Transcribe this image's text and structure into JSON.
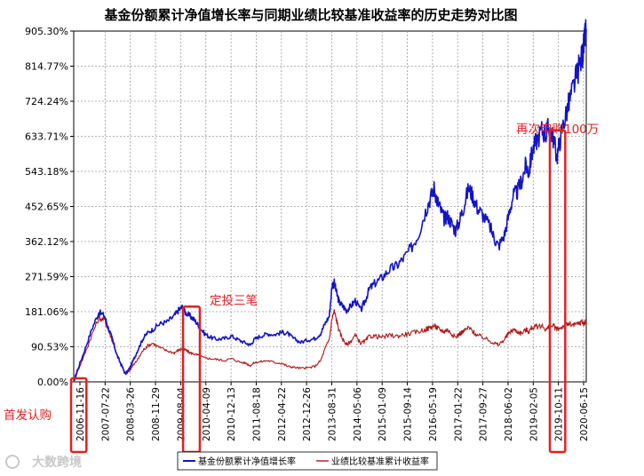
{
  "colors": {
    "fund": "#1414c8",
    "benchmark": "#b01818",
    "annotation": "#e02020",
    "grid": "#9a9a9a",
    "axis": "#000000",
    "watermark": "#c8c8c8"
  },
  "chart_data": {
    "type": "line",
    "title": "基金份额累计净值增长率与同期业绩比较基准收益率的历史走势对比图",
    "xlabel": "",
    "ylabel": "",
    "ylim": [
      0,
      905.3
    ],
    "y_ticks": [
      "0.00%",
      "90.53%",
      "181.06%",
      "271.59%",
      "362.12%",
      "452.65%",
      "543.18%",
      "633.71%",
      "724.24%",
      "814.77%",
      "905.30%"
    ],
    "x_ticks": [
      "2006-11-16",
      "2007-07-22",
      "2008-03-26",
      "2008-11-29",
      "2009-08-04",
      "2010-04-09",
      "2010-12-13",
      "2011-08-18",
      "2012-04-22",
      "2012-12-26",
      "2013-08-31",
      "2014-05-06",
      "2015-01-09",
      "2015-09-14",
      "2016-05-19",
      "2017-01-22",
      "2017-09-27",
      "2018-06-02",
      "2019-02-05",
      "2019-10-11",
      "2020-06-15"
    ],
    "grid": true,
    "legend_position": "bottom-center",
    "series": [
      {
        "name": "基金份额累计净值增长率",
        "color": "#1414c8",
        "points": [
          [
            0,
            0
          ],
          [
            0.5,
            30
          ],
          [
            1.5,
            80
          ],
          [
            2.5,
            135
          ],
          [
            3.5,
            180
          ],
          [
            4.3,
            170
          ],
          [
            4.8,
            140
          ],
          [
            5.4,
            110
          ],
          [
            6,
            70
          ],
          [
            6.6,
            45
          ],
          [
            7.2,
            20
          ],
          [
            7.8,
            35
          ],
          [
            8.4,
            60
          ],
          [
            9,
            85
          ],
          [
            9.6,
            110
          ],
          [
            10.2,
            125
          ],
          [
            11,
            135
          ],
          [
            12,
            150
          ],
          [
            13,
            155
          ],
          [
            14,
            170
          ],
          [
            14.6,
            185
          ],
          [
            15.1,
            192
          ],
          [
            15.6,
            178
          ],
          [
            16.2,
            170
          ],
          [
            16.8,
            160
          ],
          [
            17.4,
            145
          ],
          [
            18.2,
            125
          ],
          [
            19,
            115
          ],
          [
            20,
            110
          ],
          [
            21,
            112
          ],
          [
            22,
            118
          ],
          [
            23,
            108
          ],
          [
            24,
            100
          ],
          [
            24.6,
            95
          ],
          [
            25.2,
            110
          ],
          [
            26,
            118
          ],
          [
            27,
            124
          ],
          [
            28,
            122
          ],
          [
            29,
            128
          ],
          [
            29.8,
            125
          ],
          [
            30.6,
            112
          ],
          [
            31.6,
            102
          ],
          [
            32.6,
            108
          ],
          [
            33.6,
            112
          ],
          [
            34.4,
            125
          ],
          [
            35,
            150
          ],
          [
            35.6,
            170
          ],
          [
            36,
            250
          ],
          [
            36.3,
            255
          ],
          [
            36.6,
            230
          ],
          [
            37,
            205
          ],
          [
            37.5,
            195
          ],
          [
            38,
            185
          ],
          [
            38.6,
            195
          ],
          [
            39.2,
            210
          ],
          [
            40,
            185
          ],
          [
            40.6,
            210
          ],
          [
            41.2,
            240
          ],
          [
            42,
            255
          ],
          [
            43,
            270
          ],
          [
            44,
            290
          ],
          [
            45,
            300
          ],
          [
            46,
            320
          ],
          [
            47,
            345
          ],
          [
            48,
            380
          ],
          [
            49,
            440
          ],
          [
            49.6,
            470
          ],
          [
            50.2,
            500
          ],
          [
            50.6,
            470
          ],
          [
            51,
            450
          ],
          [
            51.6,
            420
          ],
          [
            52,
            430
          ],
          [
            52.6,
            410
          ],
          [
            53.2,
            390
          ],
          [
            53.8,
            420
          ],
          [
            54.3,
            450
          ],
          [
            55,
            500
          ],
          [
            55.6,
            480
          ],
          [
            56.2,
            450
          ],
          [
            57,
            430
          ],
          [
            58,
            400
          ],
          [
            58.6,
            370
          ],
          [
            59.2,
            350
          ],
          [
            60,
            380
          ],
          [
            60.6,
            430
          ],
          [
            61.2,
            480
          ],
          [
            61.8,
            490
          ],
          [
            62.4,
            520
          ],
          [
            63,
            560
          ],
          [
            63.4,
            540
          ],
          [
            63.8,
            590
          ],
          [
            64.4,
            620
          ],
          [
            65.2,
            650
          ],
          [
            65.8,
            640
          ],
          [
            66.2,
            660
          ],
          [
            66.8,
            630
          ],
          [
            67.3,
            580
          ],
          [
            67.8,
            630
          ],
          [
            68.4,
            680
          ],
          [
            69,
            720
          ],
          [
            69.6,
            760
          ],
          [
            70.2,
            800
          ],
          [
            70.8,
            840
          ],
          [
            71.1,
            870
          ],
          [
            71.4,
            910
          ]
        ]
      },
      {
        "name": "业绩比较基准累计收益率",
        "color": "#b01818",
        "points": [
          [
            0,
            0
          ],
          [
            0.5,
            25
          ],
          [
            1.5,
            70
          ],
          [
            2.5,
            120
          ],
          [
            3.5,
            165
          ],
          [
            4.3,
            160
          ],
          [
            4.8,
            135
          ],
          [
            5.4,
            105
          ],
          [
            6,
            70
          ],
          [
            6.6,
            45
          ],
          [
            7.2,
            20
          ],
          [
            7.8,
            30
          ],
          [
            8.4,
            45
          ],
          [
            9,
            60
          ],
          [
            9.6,
            80
          ],
          [
            10.2,
            92
          ],
          [
            11,
            100
          ],
          [
            12,
            88
          ],
          [
            13,
            80
          ],
          [
            14,
            75
          ],
          [
            14.6,
            82
          ],
          [
            15.1,
            85
          ],
          [
            15.6,
            82
          ],
          [
            16.2,
            75
          ],
          [
            16.8,
            72
          ],
          [
            17.4,
            68
          ],
          [
            18.2,
            62
          ],
          [
            19,
            60
          ],
          [
            20,
            58
          ],
          [
            21,
            55
          ],
          [
            22,
            60
          ],
          [
            23,
            52
          ],
          [
            24,
            48
          ],
          [
            24.6,
            42
          ],
          [
            25.2,
            50
          ],
          [
            26,
            52
          ],
          [
            27,
            55
          ],
          [
            28,
            50
          ],
          [
            29,
            48
          ],
          [
            29.8,
            40
          ],
          [
            30.6,
            38
          ],
          [
            31.6,
            35
          ],
          [
            32.6,
            36
          ],
          [
            33.6,
            40
          ],
          [
            34.4,
            55
          ],
          [
            35,
            85
          ],
          [
            35.6,
            110
          ],
          [
            36,
            165
          ],
          [
            36.3,
            182
          ],
          [
            36.6,
            160
          ],
          [
            37,
            130
          ],
          [
            37.5,
            110
          ],
          [
            38,
            95
          ],
          [
            38.6,
            105
          ],
          [
            39.2,
            120
          ],
          [
            40,
            100
          ],
          [
            40.6,
            105
          ],
          [
            41.2,
            118
          ],
          [
            42,
            118
          ],
          [
            43,
            115
          ],
          [
            44,
            120
          ],
          [
            45,
            118
          ],
          [
            46,
            122
          ],
          [
            47,
            125
          ],
          [
            48,
            130
          ],
          [
            49,
            135
          ],
          [
            49.6,
            140
          ],
          [
            50.2,
            145
          ],
          [
            50.6,
            140
          ],
          [
            51,
            135
          ],
          [
            51.6,
            130
          ],
          [
            52,
            135
          ],
          [
            52.6,
            125
          ],
          [
            53.2,
            115
          ],
          [
            53.8,
            125
          ],
          [
            54.3,
            130
          ],
          [
            55,
            140
          ],
          [
            55.6,
            130
          ],
          [
            56.2,
            120
          ],
          [
            57,
            115
          ],
          [
            58,
            105
          ],
          [
            58.6,
            100
          ],
          [
            59.2,
            95
          ],
          [
            60,
            110
          ],
          [
            60.6,
            125
          ],
          [
            61.2,
            135
          ],
          [
            61.8,
            130
          ],
          [
            62.4,
            125
          ],
          [
            63,
            135
          ],
          [
            63.4,
            130
          ],
          [
            63.8,
            140
          ],
          [
            64.4,
            142
          ],
          [
            65.2,
            145
          ],
          [
            65.8,
            135
          ],
          [
            66.2,
            140
          ],
          [
            66.8,
            145
          ],
          [
            67.3,
            135
          ],
          [
            67.8,
            140
          ],
          [
            68.4,
            145
          ],
          [
            69,
            150
          ],
          [
            69.6,
            145
          ],
          [
            70.2,
            150
          ],
          [
            70.8,
            155
          ],
          [
            71.1,
            150
          ],
          [
            71.4,
            155
          ]
        ]
      }
    ],
    "annotations": [
      {
        "text": "首发认购",
        "x_start": 0,
        "x_end": 1.4,
        "y_low": -92,
        "y_high": 0
      },
      {
        "text": "定投三笔",
        "x_start": 15.6,
        "x_end": 17.2,
        "y_low": -92,
        "y_high": 185
      },
      {
        "text": "再次申购100万",
        "x_start": 66.7,
        "x_end": 68.1,
        "y_low": -92,
        "y_high": 640
      }
    ]
  },
  "watermark": "大数跨境"
}
